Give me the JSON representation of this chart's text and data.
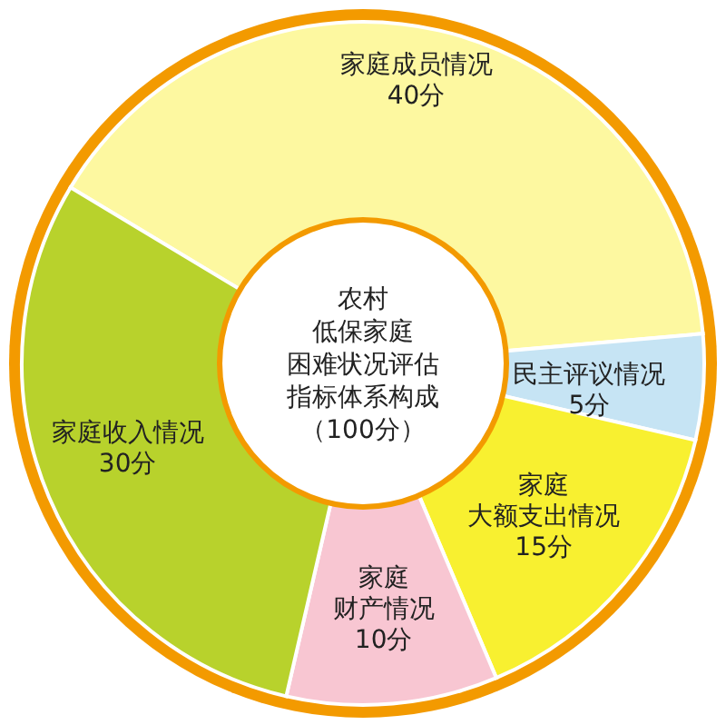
{
  "chart_data": {
    "type": "donut",
    "title": "农村低保家庭困难状况评估指标体系构成（100分）",
    "categories": [
      "家庭成员情况",
      "民主评议情况",
      "家庭大额支出情况",
      "家庭财产情况",
      "家庭收入情况"
    ],
    "values": [
      40,
      5,
      15,
      10,
      30
    ],
    "value_labels": [
      "40分",
      "5分",
      "15分",
      "10分",
      "30分"
    ],
    "colors": [
      "#fdf8a0",
      "#c6e4f4",
      "#f8f030",
      "#f8c6d2",
      "#b8d22c"
    ]
  }
}
